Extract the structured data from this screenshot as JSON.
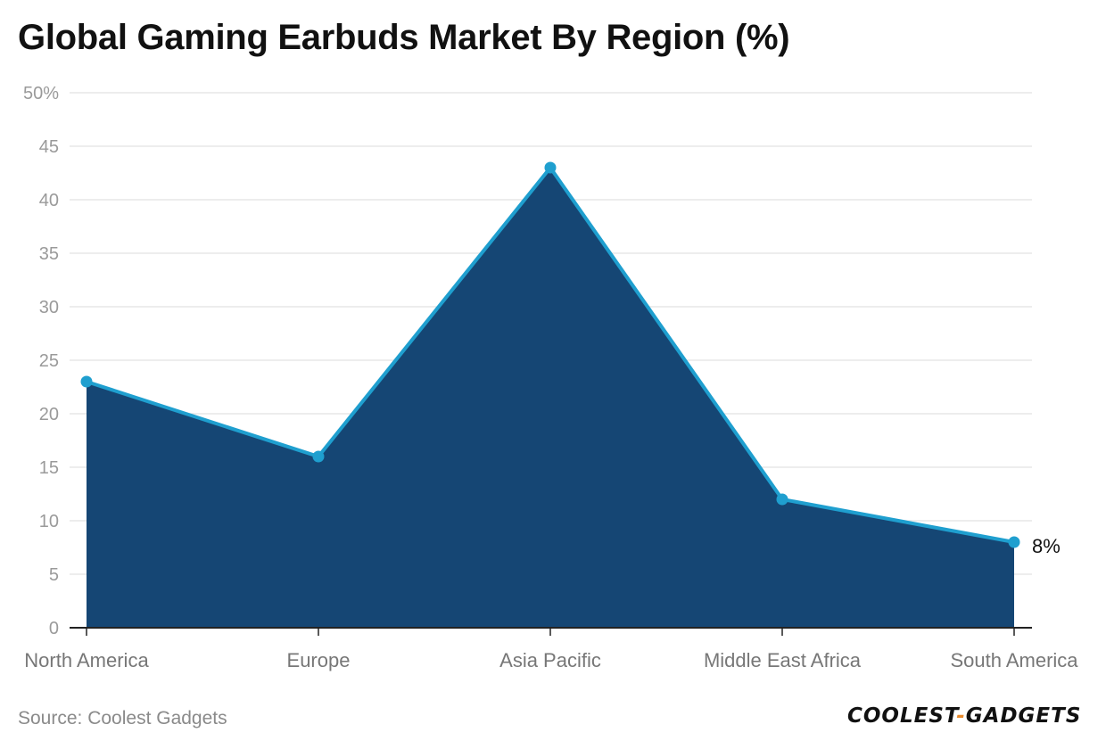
{
  "title": "Global Gaming Earbuds Market By Region (%)",
  "source": "Source: Coolest Gadgets",
  "logo": {
    "left": "COOLEST",
    "dash": "-",
    "right": "GADGETS"
  },
  "colors": {
    "area_fill": "#154674",
    "line": "#1f9fcf",
    "marker": "#1f9fcf",
    "grid": "#e2e2e2",
    "axis": "#222222",
    "tick_label": "#9a9a9a",
    "category_label": "#777777",
    "logo_accent": "#e8892b"
  },
  "chart_data": {
    "type": "area",
    "title": "Global Gaming Earbuds Market By Region (%)",
    "categories": [
      "North America",
      "Europe",
      "Asia Pacific",
      "Middle East Africa",
      "South America"
    ],
    "series": [
      {
        "values": [
          23,
          16,
          43,
          12,
          8
        ]
      }
    ],
    "ylim": [
      0,
      50
    ],
    "yticks": [
      0,
      5,
      10,
      15,
      20,
      25,
      30,
      35,
      40,
      45,
      50
    ],
    "ytick_labels": [
      "0",
      "5",
      "10",
      "15",
      "20",
      "25",
      "30",
      "35",
      "40",
      "45",
      "50%"
    ],
    "data_labels": [
      {
        "category": "South America",
        "text": "8%"
      }
    ],
    "grid": true,
    "legend": "none",
    "markers": true
  }
}
